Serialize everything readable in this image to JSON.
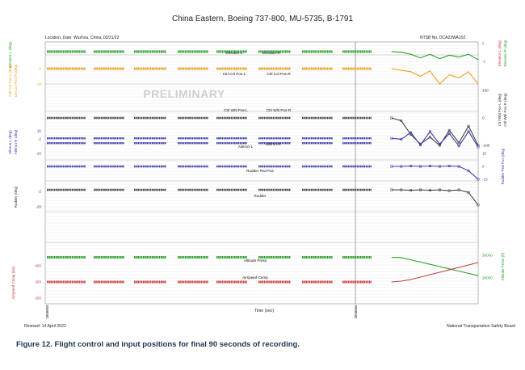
{
  "header": {
    "title": "China Eastern, Boeing 737-800, MU-5735, B-1791",
    "location": "Location, Date: Wuzhou, China, 03/21/22",
    "ntsb_no": "NTSB No. DCA22WA102"
  },
  "footer": {
    "revised": "Revised: 14 April 2022",
    "board": "National Transportation Safety Board",
    "caption": "Figure 12. Flight control and input positions for final 90 seconds of recording."
  },
  "chart_data": {
    "type": "line",
    "watermark": "PRELIMINARY",
    "xlabel": "Time (sec)",
    "x_tick_labels": [
      "2868805",
      "2868865"
    ],
    "colors": {
      "elevator": "#2aa02a",
      "column": "#e8a020",
      "wheel": "#444444",
      "aileron": "#3a3ab0",
      "rudder_pedal": "#3a3ab0",
      "rudder": "#444444",
      "altitude": "#2aa02a",
      "airspeed": "#c83c3c"
    },
    "panels": [
      {
        "left_axis": "Elevator-L (deg)",
        "right_axis_labels": [
          "Elevator-L (deg)",
          "Elevator-R (deg)"
        ],
        "ticks_right": [
          "5",
          "-5"
        ],
        "series": [
          {
            "name": "Elevator-L"
          },
          {
            "name": "Elevator-R"
          }
        ]
      },
      {
        "left_axis": "Ctrl Col Pos-L (deg) / Ctrl Col Pos-R (deg)",
        "ticks_left": [
          "0",
          "-10"
        ],
        "series": [
          {
            "name": "Ctrl Col Pos-L"
          },
          {
            "name": "Ctrl Col Pos-R"
          }
        ]
      },
      {
        "right_axis": "Ctrl Whl Pos-L (deg) / Ctrl Whl Pos-R (deg)",
        "ticks_right": [
          "100",
          "0",
          "-100"
        ],
        "series": [
          {
            "name": "Ctrl Whl Pos-L"
          },
          {
            "name": "Ctrl Whl Pos-R"
          }
        ]
      },
      {
        "left_axis": "Aileron-L (deg) / Aileron-R (deg)",
        "ticks_left": [
          "16",
          "-2",
          "-20"
        ],
        "series": [
          {
            "name": "Aileron-L"
          },
          {
            "name": "Aileron-R"
          }
        ]
      },
      {
        "right_axis": "Rudder Ped Pos (deg)",
        "ticks_right": [
          "15",
          "0",
          "-15"
        ],
        "series": [
          {
            "name": "Rudder Ped Pos"
          }
        ]
      },
      {
        "left_axis": "Rudder (deg)",
        "ticks_left": [
          "-2",
          "-20"
        ],
        "series": [
          {
            "name": "Rudder"
          }
        ]
      },
      {
        "right_axis": "Altitude Press (ft)",
        "ticks_right": [
          "30000",
          "20000"
        ],
        "series": [
          {
            "name": "Altitude Press"
          }
        ]
      },
      {
        "left_axis": "Airspeed Comp (kts)",
        "ticks_left": [
          "400",
          "300",
          "200"
        ],
        "series": [
          {
            "name": "Airspeed Comp"
          }
        ]
      }
    ],
    "sample_seconds": [
      0,
      2,
      4,
      6,
      8,
      10,
      12,
      14,
      16,
      18,
      20,
      22,
      24,
      26,
      28,
      30,
      32,
      34,
      36,
      38,
      40,
      42,
      44,
      46,
      48,
      50,
      52,
      54,
      56,
      58,
      60,
      62,
      64,
      66,
      68,
      70,
      72,
      74,
      76,
      78,
      80,
      82,
      84,
      86,
      88,
      90
    ],
    "traces": {
      "elevator_deg": [
        0.5,
        0.5,
        0.5,
        0.5,
        0.5,
        0.5,
        0.5,
        0.5,
        0.5,
        0.5,
        0.5,
        0.5,
        0.5,
        0.5,
        0.5,
        0.5,
        0.5,
        0.5,
        0.5,
        0.5,
        0.5,
        0.5,
        0.5,
        0.5,
        0.5,
        0.5,
        0.5,
        0.5,
        0.5,
        0.5,
        0.5,
        0.5,
        0.5,
        0.5,
        0.5,
        0.5,
        0.5,
        0.2,
        -1.0,
        -3.0,
        -1.0,
        -3.5,
        -1.5,
        -2.5,
        -1.0,
        -4.0
      ],
      "column_deg": [
        0,
        0,
        0,
        0,
        0,
        0,
        0,
        0,
        0,
        0,
        0,
        0,
        0,
        0,
        0,
        0,
        0,
        0,
        0,
        0,
        0,
        0,
        0,
        0,
        0,
        0,
        0,
        0,
        0,
        0,
        0,
        0,
        0,
        0,
        0,
        0,
        0,
        -1.0,
        -2.0,
        -5.0,
        -1.5,
        -10.0,
        -4.0,
        -6.0,
        -2.0,
        -10.0
      ],
      "wheel_deg": [
        0,
        0,
        0,
        0,
        0,
        0,
        0,
        0,
        0,
        0,
        0,
        0,
        0,
        0,
        0,
        0,
        0,
        0,
        0,
        0,
        0,
        0,
        0,
        0,
        0,
        0,
        0,
        0,
        0,
        0,
        0,
        0,
        0,
        0,
        0,
        0,
        0,
        -10,
        -60,
        -95,
        -70,
        -100,
        -45,
        -90,
        -30,
        -100
      ],
      "aileron_deg": [
        -2,
        -2,
        -2,
        -2,
        -2,
        -2,
        -2,
        -2,
        -2,
        -2,
        -2,
        -2,
        -2,
        -2,
        -2,
        -2,
        -2,
        -2,
        -2,
        -2,
        -2,
        -2,
        -2,
        -2,
        -2,
        -2,
        -2,
        -2,
        -2,
        -2,
        -2,
        -2,
        -2,
        -2,
        -2,
        -2,
        -2,
        -4,
        10,
        -16,
        12,
        -14,
        8,
        -18,
        12,
        -20
      ],
      "rudder_pedal_deg": [
        0,
        0,
        0,
        0,
        0,
        0,
        0,
        0,
        0,
        0,
        0,
        0,
        0,
        0,
        0,
        0,
        0,
        0,
        0,
        0,
        0,
        0,
        0,
        0,
        0,
        0,
        0,
        0,
        0,
        0,
        0,
        0,
        0,
        0,
        0,
        0,
        0,
        0,
        0.5,
        0,
        0.5,
        0,
        0.5,
        0,
        -5,
        -15
      ],
      "rudder_deg": [
        -2,
        -2,
        -2,
        -2,
        -2,
        -2,
        -2,
        -2,
        -2,
        -2,
        -2,
        -2,
        -2,
        -2,
        -2,
        -2,
        -2,
        -2,
        -2,
        -2,
        -2,
        -2,
        -2,
        -2,
        -2,
        -2,
        -2,
        -2,
        -2,
        -2,
        -2,
        -2,
        -2,
        -2,
        -2,
        -2,
        -2,
        -2,
        -2.5,
        -2,
        -2.5,
        -2,
        -3,
        -2,
        -5,
        -20
      ],
      "altitude_ft": [
        29100,
        29100,
        29100,
        29100,
        29100,
        29100,
        29100,
        29100,
        29100,
        29100,
        29100,
        29100,
        29100,
        29100,
        29100,
        29100,
        29100,
        29100,
        29100,
        29100,
        29100,
        29100,
        29100,
        29100,
        29100,
        29100,
        29100,
        29100,
        29100,
        29100,
        29100,
        29100,
        29100,
        29100,
        29100,
        29100,
        29100,
        29000,
        28000,
        27000,
        26000,
        25000,
        24000,
        23000,
        22000,
        21000
      ],
      "airspeed_kts": [
        300,
        300,
        300,
        300,
        300,
        300,
        300,
        300,
        300,
        300,
        300,
        300,
        300,
        300,
        300,
        300,
        300,
        300,
        300,
        300,
        300,
        300,
        300,
        300,
        300,
        300,
        300,
        300,
        300,
        300,
        300,
        300,
        300,
        300,
        300,
        300,
        300,
        305,
        315,
        330,
        345,
        360,
        375,
        390,
        405,
        420
      ]
    }
  }
}
